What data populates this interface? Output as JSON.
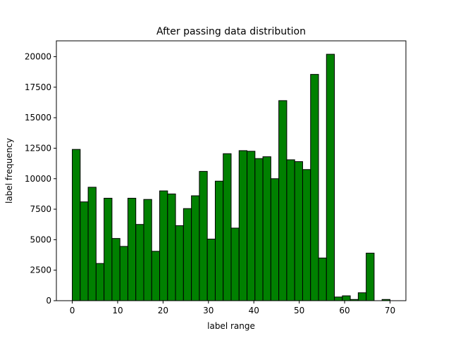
{
  "chart_data": {
    "type": "bar",
    "title": "After passing data distribution",
    "xlabel": "label range",
    "ylabel": "label frequency",
    "xlim": [
      -3.5,
      73.5
    ],
    "ylim": [
      0,
      21300
    ],
    "xticks": [
      0,
      10,
      20,
      30,
      40,
      50,
      60,
      70
    ],
    "xtick_labels": [
      "0",
      "10",
      "20",
      "30",
      "40",
      "50",
      "60",
      "70"
    ],
    "yticks": [
      0,
      2500,
      5000,
      7500,
      10000,
      12500,
      15000,
      17500,
      20000
    ],
    "ytick_labels": [
      "0",
      "2500",
      "5000",
      "7500",
      "10000",
      "12500",
      "15000",
      "17500",
      "20000"
    ],
    "bar_color": "#008000",
    "edge_color": "#000000",
    "bin_edges": [
      0,
      1.75,
      3.5,
      5.25,
      7,
      8.75,
      10.5,
      12.25,
      14,
      15.75,
      17.5,
      19.25,
      21,
      22.75,
      24.5,
      26.25,
      28,
      29.75,
      31.5,
      33.25,
      35,
      36.75,
      38.5,
      40.25,
      42,
      43.75,
      45.5,
      47.25,
      49,
      50.75,
      52.5,
      54.25,
      56,
      57.75,
      59.5,
      61.25,
      63,
      64.75,
      66.5,
      68.25,
      70
    ],
    "values": [
      12400,
      8100,
      9300,
      3050,
      8400,
      5100,
      4450,
      8400,
      6250,
      8300,
      4050,
      9000,
      8750,
      6150,
      7550,
      8600,
      10600,
      5050,
      9800,
      12050,
      5950,
      12300,
      12250,
      11650,
      11800,
      10000,
      16400,
      11550,
      11400,
      10750,
      18550,
      3500,
      20200,
      300,
      400,
      100,
      650,
      3900,
      0,
      100
    ]
  }
}
